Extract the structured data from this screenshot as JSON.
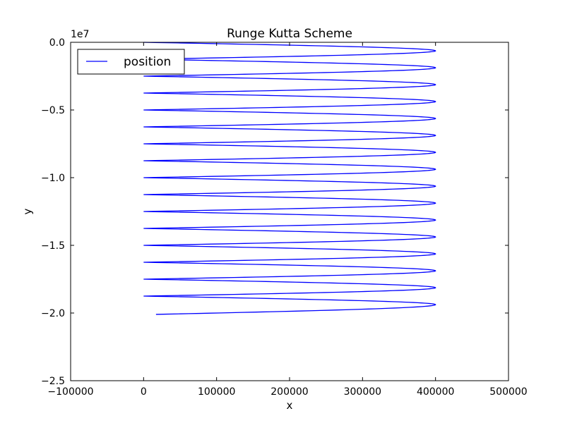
{
  "chart_data": {
    "type": "line",
    "title": "Runge Kutta Scheme",
    "xlabel": "x",
    "ylabel": "y",
    "y_offset_label": "1e7",
    "xlim": [
      -100000,
      500000
    ],
    "ylim": [
      -25000000,
      0
    ],
    "xticks": [
      -100000,
      0,
      100000,
      200000,
      300000,
      400000,
      500000
    ],
    "xtick_labels": [
      "−100000",
      "0",
      "100000",
      "200000",
      "300000",
      "400000",
      "500000"
    ],
    "yticks": [
      0,
      -5000000,
      -10000000,
      -15000000,
      -20000000,
      -25000000
    ],
    "ytick_labels": [
      "0.0",
      "−0.5",
      "−1.0",
      "−1.5",
      "−2.0",
      "−2.5"
    ],
    "grid": false,
    "legend_position": "upper-left",
    "series": [
      {
        "name": "position",
        "color": "#0000ff",
        "shape": "oscillation between x = 0 and x = 400000 while y decreases steadily",
        "x_min": 0,
        "x_max": 400000,
        "turning_points_right_y": [
          -630000,
          -1880000,
          -3130000,
          -4380000,
          -5630000,
          -6880000,
          -8130000,
          -9380000,
          -10630000,
          -11880000,
          -13130000,
          -14380000,
          -15630000,
          -16880000,
          -18130000,
          -19380000
        ],
        "turning_points_left_y": [
          -1250000,
          -2500000,
          -3750000,
          -5000000,
          -6250000,
          -7500000,
          -8750000,
          -10000000,
          -11250000,
          -12500000,
          -13750000,
          -15000000,
          -16250000,
          -17500000,
          -18750000
        ],
        "start": [
          0,
          0
        ],
        "end": [
          17000,
          -20100000
        ]
      }
    ]
  }
}
